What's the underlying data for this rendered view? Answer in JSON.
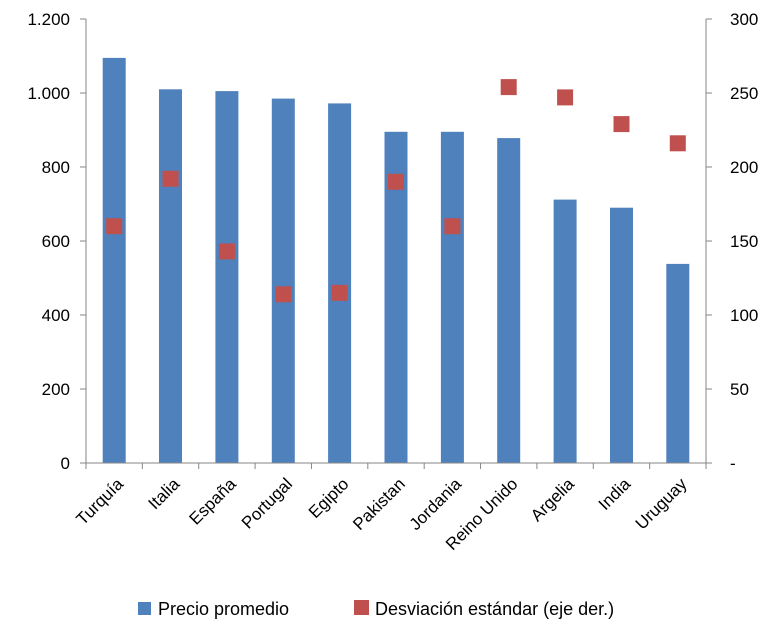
{
  "chart_data": {
    "type": "bar",
    "categories": [
      "Turquía",
      "Italia",
      "España",
      "Portugal",
      "Egipto",
      "Pakistan",
      "Jordania",
      "Reino Unido",
      "Argelia",
      "India",
      "Uruguay"
    ],
    "series": [
      {
        "name": "Precio promedio",
        "type": "bar",
        "axis": "left",
        "color": "#4F81BD",
        "values": [
          1095,
          1010,
          1005,
          985,
          972,
          895,
          895,
          878,
          712,
          690,
          538
        ]
      },
      {
        "name": "Desviación estándar (eje der.)",
        "type": "scatter",
        "axis": "right",
        "color": "#C0504D",
        "values": [
          160,
          192,
          143,
          114,
          115,
          190,
          160,
          254,
          247,
          229,
          216
        ]
      }
    ],
    "y_left": {
      "range": [
        0,
        1200
      ],
      "ticks": [
        0,
        200,
        400,
        600,
        800,
        1000,
        1200
      ],
      "tick_labels": [
        "0",
        "200",
        "400",
        "600",
        "800",
        "1.000",
        "1.200"
      ]
    },
    "y_right": {
      "range": [
        0,
        300
      ],
      "ticks": [
        0,
        50,
        100,
        150,
        200,
        250,
        300
      ],
      "tick_labels": [
        "-",
        "50",
        "100",
        "150",
        "200",
        "250",
        "300"
      ]
    },
    "title": "",
    "xlabel": "",
    "grid": false,
    "legend_position": "bottom"
  }
}
